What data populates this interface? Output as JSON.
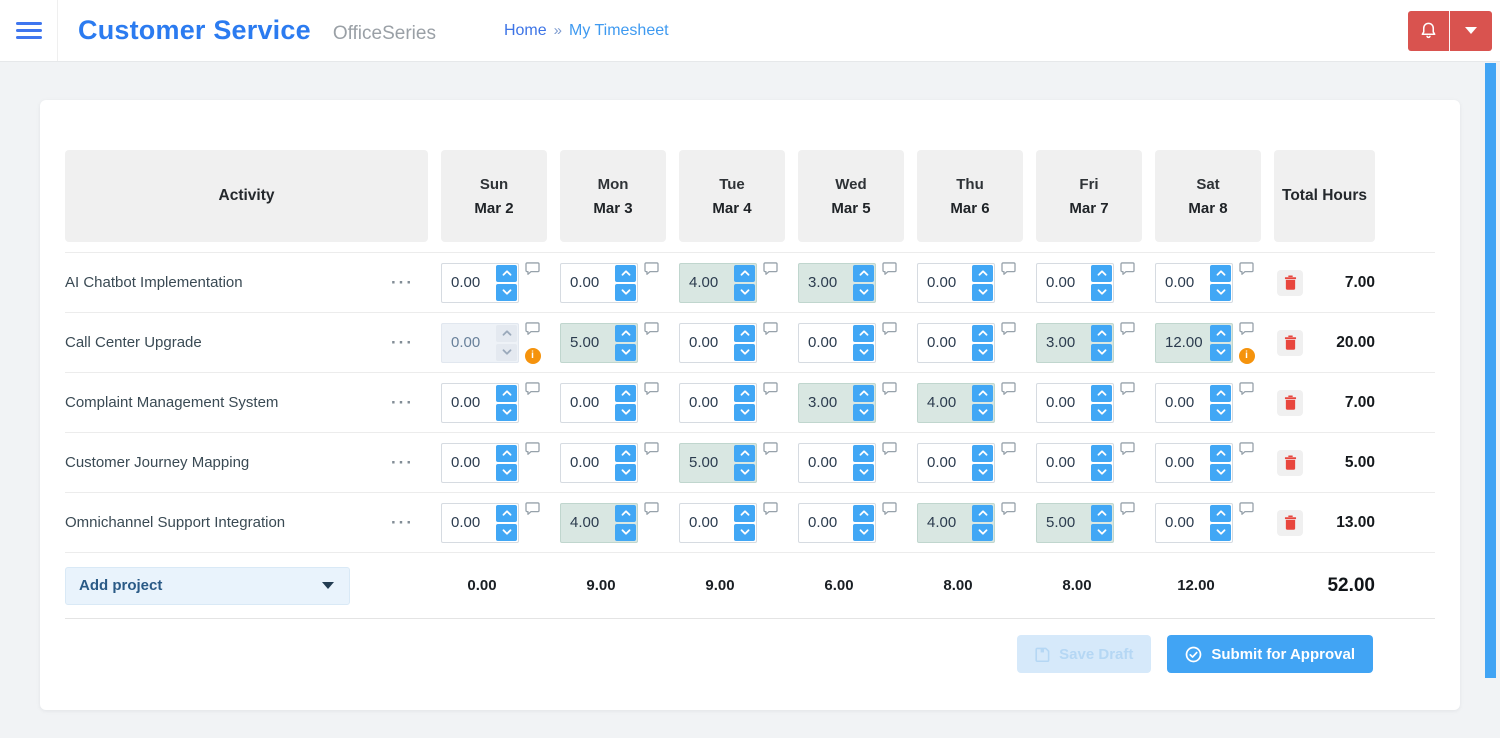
{
  "header": {
    "app_title": "Customer Service",
    "suite_name": "OfficeSeries",
    "breadcrumb": {
      "home": "Home",
      "separator": "»",
      "current": "My Timesheet"
    }
  },
  "icons": {
    "ellipsis": "···",
    "info_badge": "i"
  },
  "colors": {
    "accent_blue": "#41a4f4",
    "title_blue": "#2b7bf0",
    "alert_red": "#d9534f",
    "trash_red": "#e8463d",
    "filled_cell_bg": "#d9e7e2",
    "warning_orange": "#f5930d",
    "header_cell_bg": "#f0f0f0"
  },
  "timesheet": {
    "header": {
      "activity_label": "Activity",
      "days": [
        {
          "name": "Sun",
          "date": "Mar 2"
        },
        {
          "name": "Mon",
          "date": "Mar 3"
        },
        {
          "name": "Tue",
          "date": "Mar 4"
        },
        {
          "name": "Wed",
          "date": "Mar 5"
        },
        {
          "name": "Thu",
          "date": "Mar 6"
        },
        {
          "name": "Fri",
          "date": "Mar 7"
        },
        {
          "name": "Sat",
          "date": "Mar 8"
        }
      ],
      "total_label": "Total Hours"
    },
    "rows": [
      {
        "activity": "AI Chatbot Implementation",
        "cells": [
          {
            "value": "0.00",
            "state": "normal",
            "info": false
          },
          {
            "value": "0.00",
            "state": "normal",
            "info": false
          },
          {
            "value": "4.00",
            "state": "filled",
            "info": false
          },
          {
            "value": "3.00",
            "state": "filled",
            "info": false
          },
          {
            "value": "0.00",
            "state": "normal",
            "info": false
          },
          {
            "value": "0.00",
            "state": "normal",
            "info": false
          },
          {
            "value": "0.00",
            "state": "normal",
            "info": false
          }
        ],
        "total": "7.00"
      },
      {
        "activity": "Call Center Upgrade",
        "cells": [
          {
            "value": "0.00",
            "state": "disabled",
            "info": true
          },
          {
            "value": "5.00",
            "state": "filled",
            "info": false
          },
          {
            "value": "0.00",
            "state": "normal",
            "info": false
          },
          {
            "value": "0.00",
            "state": "normal",
            "info": false
          },
          {
            "value": "0.00",
            "state": "normal",
            "info": false
          },
          {
            "value": "3.00",
            "state": "filled",
            "info": false
          },
          {
            "value": "12.00",
            "state": "filled",
            "info": true
          }
        ],
        "total": "20.00"
      },
      {
        "activity": "Complaint Management System",
        "cells": [
          {
            "value": "0.00",
            "state": "normal",
            "info": false
          },
          {
            "value": "0.00",
            "state": "normal",
            "info": false
          },
          {
            "value": "0.00",
            "state": "normal",
            "info": false
          },
          {
            "value": "3.00",
            "state": "filled",
            "info": false
          },
          {
            "value": "4.00",
            "state": "filled",
            "info": false
          },
          {
            "value": "0.00",
            "state": "normal",
            "info": false
          },
          {
            "value": "0.00",
            "state": "normal",
            "info": false
          }
        ],
        "total": "7.00"
      },
      {
        "activity": "Customer Journey Mapping",
        "cells": [
          {
            "value": "0.00",
            "state": "normal",
            "info": false
          },
          {
            "value": "0.00",
            "state": "normal",
            "info": false
          },
          {
            "value": "5.00",
            "state": "filled",
            "info": false
          },
          {
            "value": "0.00",
            "state": "normal",
            "info": false
          },
          {
            "value": "0.00",
            "state": "normal",
            "info": false
          },
          {
            "value": "0.00",
            "state": "normal",
            "info": false
          },
          {
            "value": "0.00",
            "state": "normal",
            "info": false
          }
        ],
        "total": "5.00"
      },
      {
        "activity": "Omnichannel Support Integration",
        "cells": [
          {
            "value": "0.00",
            "state": "normal",
            "info": false
          },
          {
            "value": "4.00",
            "state": "filled",
            "info": false
          },
          {
            "value": "0.00",
            "state": "normal",
            "info": false
          },
          {
            "value": "0.00",
            "state": "normal",
            "info": false
          },
          {
            "value": "4.00",
            "state": "filled",
            "info": false
          },
          {
            "value": "5.00",
            "state": "filled",
            "info": false
          },
          {
            "value": "0.00",
            "state": "normal",
            "info": false
          }
        ],
        "total": "13.00"
      }
    ],
    "footer": {
      "add_project_label": "Add project",
      "day_totals": [
        "0.00",
        "9.00",
        "9.00",
        "6.00",
        "8.00",
        "8.00",
        "12.00"
      ],
      "grand_total": "52.00"
    },
    "actions": {
      "save_draft_label": "Save Draft",
      "submit_label": "Submit for Approval"
    }
  }
}
